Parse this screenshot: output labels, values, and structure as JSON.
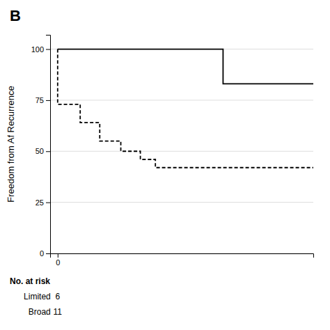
{
  "chart_data": {
    "type": "line",
    "title": "B",
    "y_label": "Freedom from Af Recurrence",
    "xlim": [
      -0.5,
      17
    ],
    "xticks": [
      0
    ],
    "ylim": [
      0,
      107
    ],
    "yticks": [
      0,
      25,
      50,
      75,
      100
    ],
    "grid": true,
    "annotations": [
      "No. at risk"
    ],
    "series": [
      {
        "name": "Limited",
        "color": "#000000",
        "line_style": "solid",
        "x": [
          0,
          11,
          11,
          17
        ],
        "values": [
          100,
          100,
          83,
          83
        ],
        "at_risk": 6
      },
      {
        "name": "Broad",
        "color": "#000000",
        "line_style": "dashed",
        "x": [
          0,
          0,
          1.5,
          1.5,
          2.8,
          2.8,
          4.2,
          4.2,
          5.5,
          5.5,
          6.5,
          6.5,
          8.0,
          8.0,
          17
        ],
        "values": [
          100,
          73,
          73,
          64,
          64,
          55,
          55,
          50,
          50,
          46,
          46,
          42,
          42,
          42,
          42
        ],
        "at_risk": 11
      }
    ]
  }
}
